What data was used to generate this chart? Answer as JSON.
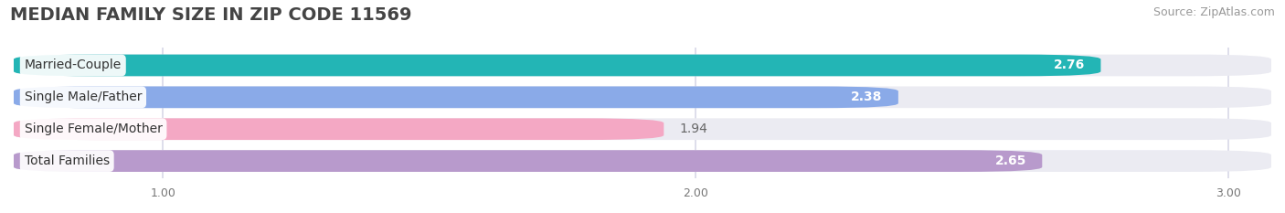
{
  "title": "MEDIAN FAMILY SIZE IN ZIP CODE 11569",
  "source": "Source: ZipAtlas.com",
  "categories": [
    "Married-Couple",
    "Single Male/Father",
    "Single Female/Mother",
    "Total Families"
  ],
  "values": [
    2.76,
    2.38,
    1.94,
    2.65
  ],
  "bar_colors": [
    "#23b5b5",
    "#8aaae8",
    "#f4a8c4",
    "#b89acc"
  ],
  "label_colors": [
    "white",
    "white",
    "#666666",
    "white"
  ],
  "value_outside": [
    false,
    false,
    true,
    false
  ],
  "xlim_min": 0.72,
  "xlim_max": 3.08,
  "xticks": [
    1.0,
    2.0,
    3.0
  ],
  "xtick_labels": [
    "1.00",
    "2.00",
    "3.00"
  ],
  "background_color": "#ffffff",
  "bar_bg_color": "#ebebf2",
  "grid_color": "#d8d8e8",
  "title_fontsize": 14,
  "source_fontsize": 9,
  "label_fontsize": 10,
  "value_fontsize": 10,
  "bar_height": 0.68,
  "bar_rounding": 0.15
}
